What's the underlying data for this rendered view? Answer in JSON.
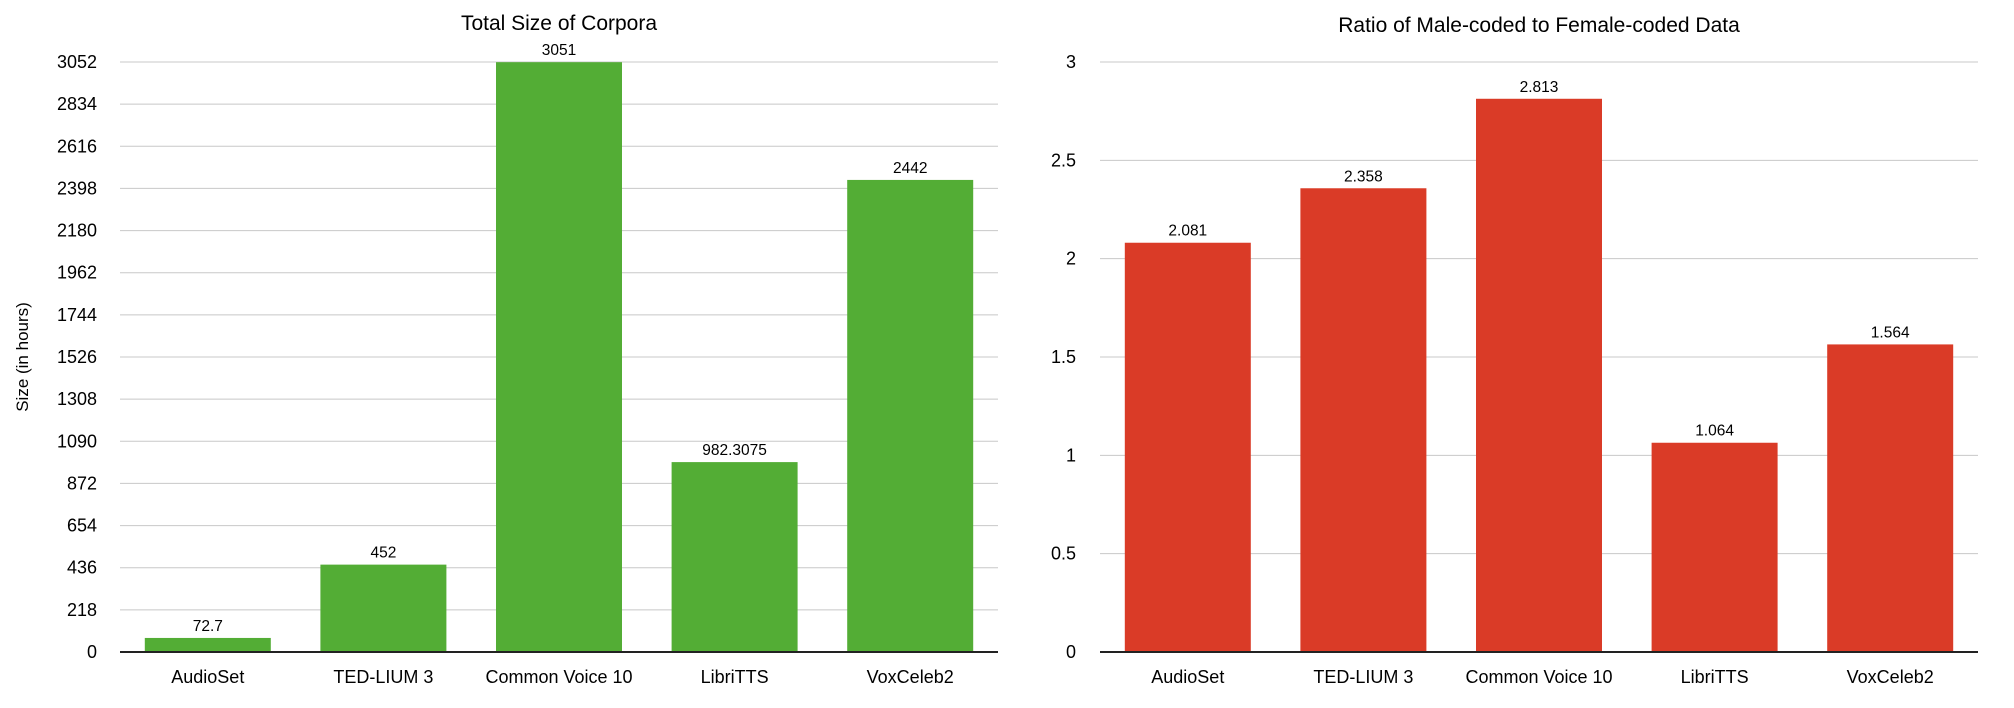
{
  "chart_data": [
    {
      "type": "bar",
      "title": "Total Size of Corpora",
      "xlabel": "",
      "ylabel": "Size (in hours)",
      "categories": [
        "AudioSet",
        "TED-LIUM 3",
        "Common Voice 10",
        "LibriTTS",
        "VoxCeleb2"
      ],
      "values": [
        72.7,
        452,
        3051,
        982.3075,
        2442
      ],
      "value_labels": [
        "72.7",
        "452",
        "3051",
        "982.3075",
        "2442"
      ],
      "ylim": [
        0,
        3052
      ],
      "yticks": [
        0,
        218,
        436,
        654,
        872,
        1090,
        1308,
        1526,
        1744,
        1962,
        2180,
        2398,
        2616,
        2834,
        3052
      ],
      "grid": true,
      "legend": "none",
      "color": "#53ad35"
    },
    {
      "type": "bar",
      "title": "Ratio of Male-coded to Female-coded Data",
      "xlabel": "",
      "ylabel": "",
      "categories": [
        "AudioSet",
        "TED-LIUM 3",
        "Common Voice 10",
        "LibriTTS",
        "VoxCeleb2"
      ],
      "values": [
        2.081,
        2.358,
        2.813,
        1.064,
        1.564
      ],
      "value_labels": [
        "2.081",
        "2.358",
        "2.813",
        "1.064",
        "1.564"
      ],
      "ylim": [
        0,
        3
      ],
      "yticks": [
        0,
        0.5,
        1,
        1.5,
        2,
        2.5,
        3
      ],
      "grid": true,
      "legend": "none",
      "color": "#da3b27"
    }
  ]
}
